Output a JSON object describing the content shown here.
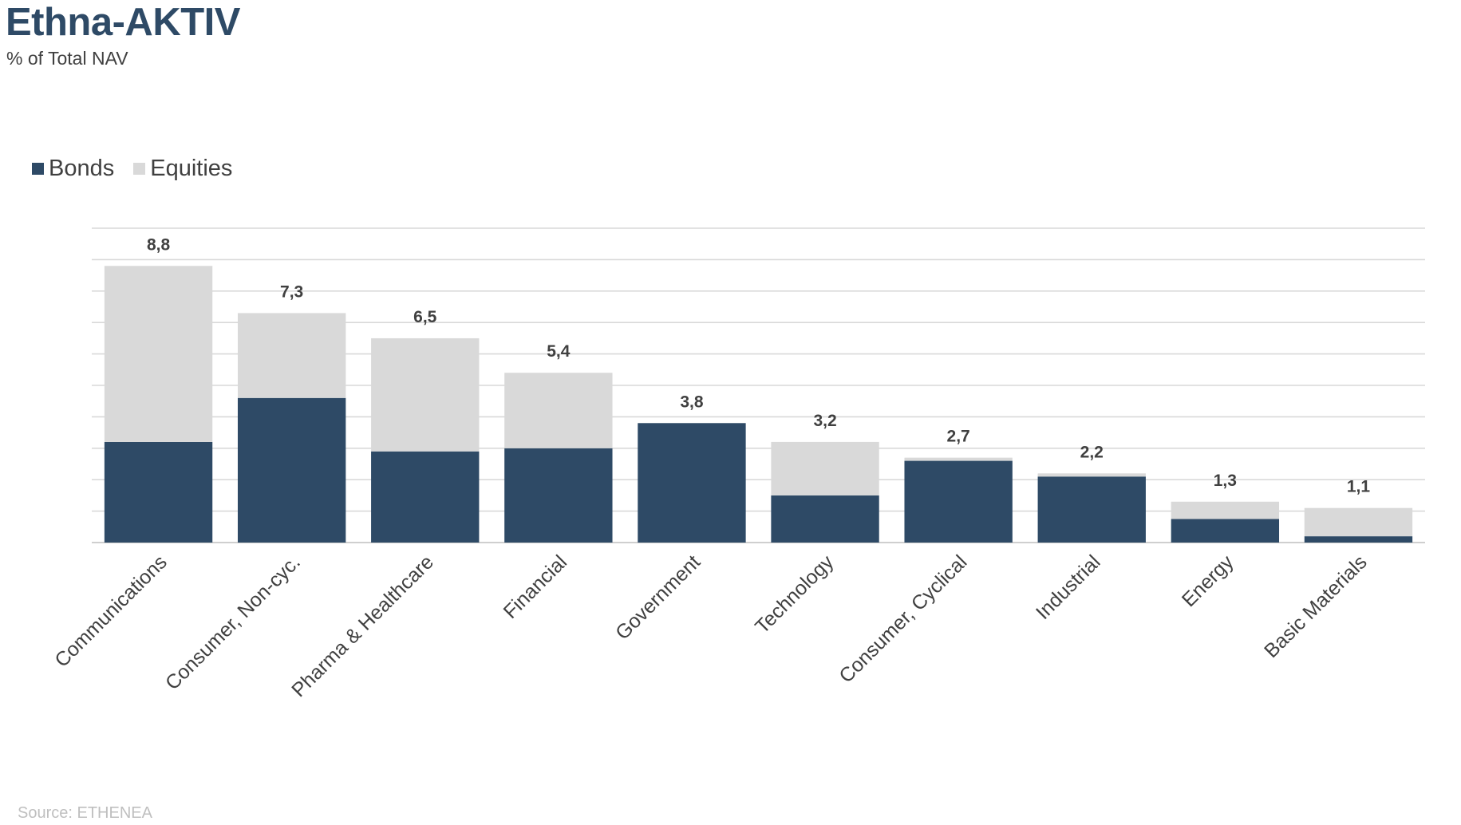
{
  "title": "Ethna-AKTIV",
  "subtitle": "% of Total NAV",
  "source": "Source: ETHENEA",
  "colors": {
    "bonds": "#2e4a66",
    "equities": "#d9d9d9",
    "grid": "#d9d9d9"
  },
  "chart_data": {
    "type": "bar",
    "stacked": true,
    "categories": [
      "Communications",
      "Consumer, Non-cyc.",
      "Pharma & Healthcare",
      "Financial",
      "Government",
      "Technology",
      "Consumer, Cyclical",
      "Industrial",
      "Energy",
      "Basic Materials"
    ],
    "series": [
      {
        "name": "Bonds",
        "values": [
          3.2,
          4.6,
          2.9,
          3.0,
          3.8,
          1.5,
          2.6,
          2.1,
          0.75,
          0.2
        ]
      },
      {
        "name": "Equities",
        "values": [
          5.6,
          2.7,
          3.6,
          2.4,
          0.0,
          1.7,
          0.1,
          0.1,
          0.55,
          0.9
        ]
      }
    ],
    "totals": [
      "8,8",
      "7,3",
      "6,5",
      "5,4",
      "3,8",
      "3,2",
      "2,7",
      "2,2",
      "1,3",
      "1,1"
    ],
    "ylim": [
      0,
      10
    ],
    "grid": true,
    "legend": "top-left"
  }
}
